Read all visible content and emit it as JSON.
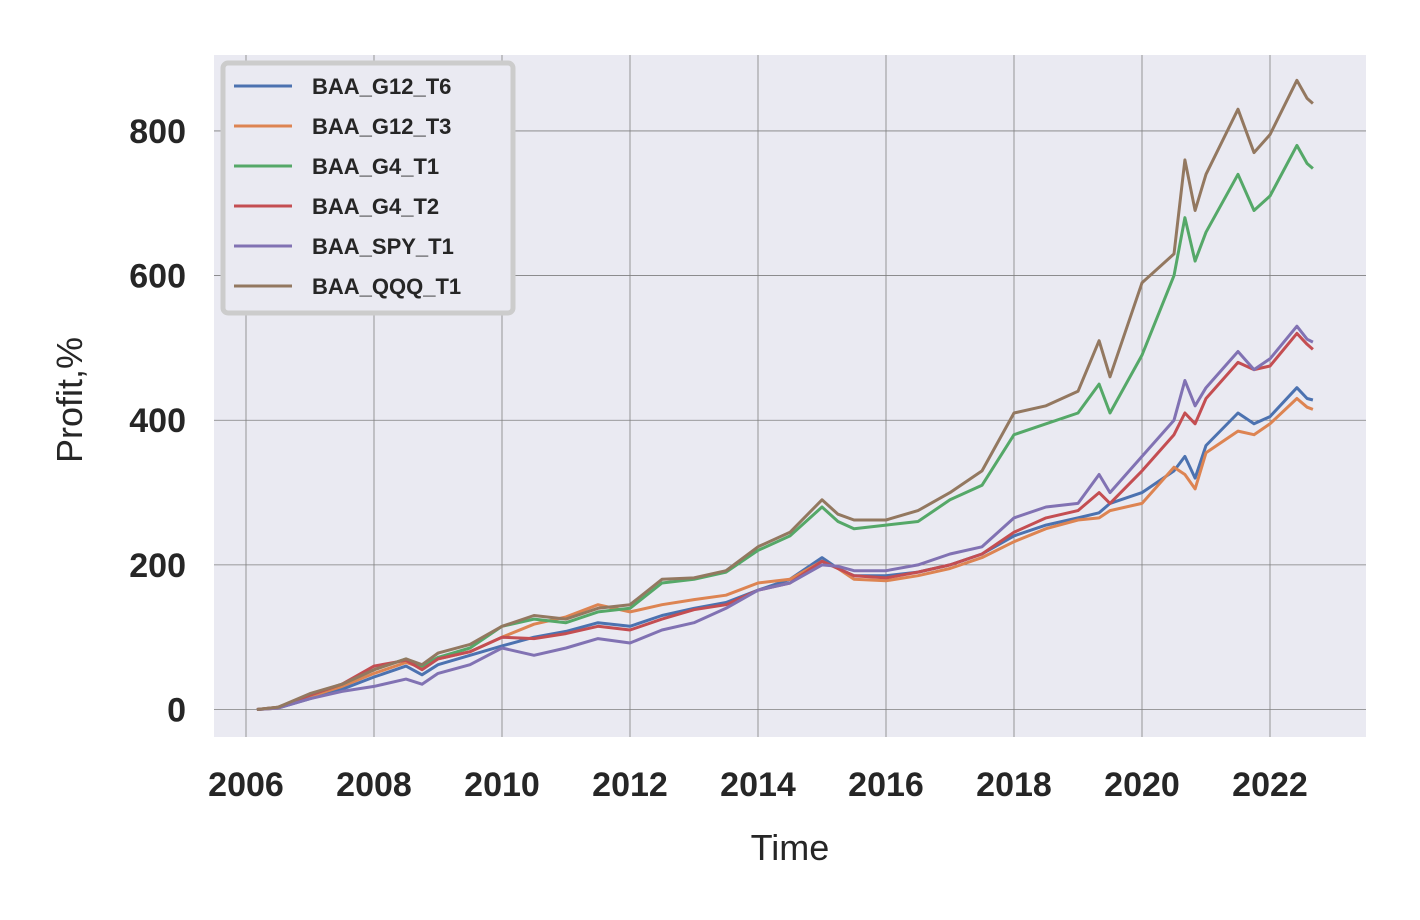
{
  "chart_data": {
    "type": "line",
    "title": "",
    "xlabel": "Time",
    "ylabel": "Profit,%",
    "xlim": [
      2005.5,
      2023.5
    ],
    "ylim": [
      -38,
      905
    ],
    "x_ticks": [
      2006,
      2008,
      2010,
      2012,
      2014,
      2016,
      2018,
      2020,
      2022
    ],
    "y_ticks": [
      0,
      200,
      400,
      600,
      800
    ],
    "grid": true,
    "legend_position": "top-left",
    "series": [
      {
        "name": "BAA_G12_T6",
        "color": "#4c72b0",
        "x": [
          2006.17,
          2006.5,
          2007.0,
          2007.5,
          2008.0,
          2008.5,
          2008.75,
          2009.0,
          2009.5,
          2010.0,
          2010.5,
          2011.0,
          2011.5,
          2012.0,
          2012.5,
          2013.0,
          2013.5,
          2014.0,
          2014.5,
          2015.0,
          2015.25,
          2015.5,
          2016.0,
          2016.5,
          2017.0,
          2017.5,
          2018.0,
          2018.5,
          2019.0,
          2019.33,
          2019.5,
          2020.0,
          2020.5,
          2020.67,
          2020.83,
          2021.0,
          2021.5,
          2021.75,
          2022.0,
          2022.42,
          2022.58,
          2022.67
        ],
        "y": [
          0,
          2,
          15,
          28,
          45,
          60,
          48,
          62,
          75,
          88,
          100,
          108,
          120,
          115,
          130,
          140,
          148,
          165,
          180,
          210,
          195,
          185,
          185,
          190,
          200,
          215,
          240,
          255,
          265,
          272,
          285,
          300,
          330,
          350,
          320,
          365,
          410,
          395,
          405,
          445,
          430,
          428
        ]
      },
      {
        "name": "BAA_G12_T3",
        "color": "#dd8452",
        "x": [
          2006.17,
          2006.5,
          2007.0,
          2007.5,
          2008.0,
          2008.5,
          2008.75,
          2009.0,
          2009.5,
          2010.0,
          2010.5,
          2011.0,
          2011.5,
          2012.0,
          2012.5,
          2013.0,
          2013.5,
          2014.0,
          2014.5,
          2015.0,
          2015.25,
          2015.5,
          2016.0,
          2016.5,
          2017.0,
          2017.5,
          2018.0,
          2018.5,
          2019.0,
          2019.33,
          2019.5,
          2020.0,
          2020.5,
          2020.67,
          2020.83,
          2021.0,
          2021.5,
          2021.75,
          2022.0,
          2022.42,
          2022.58,
          2022.67
        ],
        "y": [
          0,
          2,
          18,
          32,
          50,
          65,
          58,
          70,
          80,
          100,
          118,
          128,
          145,
          135,
          145,
          152,
          158,
          175,
          180,
          205,
          195,
          180,
          178,
          185,
          195,
          210,
          232,
          250,
          262,
          265,
          275,
          285,
          335,
          325,
          305,
          355,
          385,
          380,
          395,
          430,
          418,
          415
        ]
      },
      {
        "name": "BAA_G4_T1",
        "color": "#55a868",
        "x": [
          2006.17,
          2006.5,
          2007.0,
          2007.5,
          2008.0,
          2008.5,
          2008.75,
          2009.0,
          2009.5,
          2010.0,
          2010.5,
          2011.0,
          2011.5,
          2012.0,
          2012.5,
          2013.0,
          2013.5,
          2014.0,
          2014.5,
          2015.0,
          2015.25,
          2015.5,
          2016.0,
          2016.5,
          2017.0,
          2017.5,
          2018.0,
          2018.5,
          2019.0,
          2019.33,
          2019.5,
          2020.0,
          2020.5,
          2020.67,
          2020.83,
          2021.0,
          2021.5,
          2021.75,
          2022.0,
          2022.42,
          2022.58,
          2022.67
        ],
        "y": [
          0,
          3,
          20,
          35,
          55,
          70,
          60,
          72,
          85,
          115,
          125,
          120,
          135,
          140,
          175,
          180,
          190,
          220,
          240,
          280,
          260,
          250,
          255,
          260,
          290,
          310,
          380,
          395,
          410,
          450,
          410,
          490,
          600,
          680,
          620,
          660,
          740,
          690,
          710,
          780,
          755,
          748
        ]
      },
      {
        "name": "BAA_G4_T2",
        "color": "#c44e52",
        "x": [
          2006.17,
          2006.5,
          2007.0,
          2007.5,
          2008.0,
          2008.5,
          2008.75,
          2009.0,
          2009.5,
          2010.0,
          2010.5,
          2011.0,
          2011.5,
          2012.0,
          2012.5,
          2013.0,
          2013.5,
          2014.0,
          2014.5,
          2015.0,
          2015.25,
          2015.5,
          2016.0,
          2016.5,
          2017.0,
          2017.5,
          2018.0,
          2018.5,
          2019.0,
          2019.33,
          2019.5,
          2020.0,
          2020.5,
          2020.67,
          2020.83,
          2021.0,
          2021.5,
          2021.75,
          2022.0,
          2022.42,
          2022.58,
          2022.67
        ],
        "y": [
          0,
          3,
          20,
          35,
          60,
          68,
          55,
          70,
          80,
          100,
          98,
          105,
          115,
          110,
          125,
          138,
          145,
          165,
          175,
          205,
          195,
          185,
          182,
          190,
          200,
          215,
          245,
          265,
          275,
          300,
          285,
          330,
          380,
          410,
          395,
          430,
          480,
          470,
          475,
          520,
          505,
          498
        ]
      },
      {
        "name": "BAA_SPY_T1",
        "color": "#8172b3",
        "x": [
          2006.17,
          2006.5,
          2007.0,
          2007.5,
          2008.0,
          2008.5,
          2008.75,
          2009.0,
          2009.5,
          2010.0,
          2010.5,
          2011.0,
          2011.5,
          2012.0,
          2012.5,
          2013.0,
          2013.5,
          2014.0,
          2014.5,
          2015.0,
          2015.25,
          2015.5,
          2016.0,
          2016.5,
          2017.0,
          2017.5,
          2018.0,
          2018.5,
          2019.0,
          2019.33,
          2019.5,
          2020.0,
          2020.5,
          2020.67,
          2020.83,
          2021.0,
          2021.5,
          2021.75,
          2022.0,
          2022.42,
          2022.58,
          2022.67
        ],
        "y": [
          0,
          2,
          15,
          25,
          32,
          42,
          35,
          50,
          62,
          85,
          75,
          85,
          98,
          92,
          110,
          120,
          140,
          165,
          175,
          200,
          198,
          192,
          192,
          200,
          215,
          225,
          265,
          280,
          285,
          325,
          300,
          350,
          400,
          455,
          420,
          445,
          495,
          470,
          485,
          530,
          512,
          508
        ]
      },
      {
        "name": "BAA_QQQ_T1",
        "color": "#937860",
        "x": [
          2006.17,
          2006.5,
          2007.0,
          2007.5,
          2008.0,
          2008.5,
          2008.75,
          2009.0,
          2009.5,
          2010.0,
          2010.5,
          2011.0,
          2011.5,
          2012.0,
          2012.5,
          2013.0,
          2013.5,
          2014.0,
          2014.5,
          2015.0,
          2015.25,
          2015.5,
          2016.0,
          2016.5,
          2017.0,
          2017.5,
          2018.0,
          2018.5,
          2019.0,
          2019.33,
          2019.5,
          2020.0,
          2020.5,
          2020.67,
          2020.83,
          2021.0,
          2021.5,
          2021.75,
          2022.0,
          2022.42,
          2022.58,
          2022.67
        ],
        "y": [
          0,
          3,
          22,
          35,
          55,
          70,
          62,
          78,
          90,
          115,
          130,
          125,
          140,
          145,
          180,
          182,
          192,
          225,
          245,
          290,
          270,
          262,
          262,
          275,
          300,
          330,
          410,
          420,
          440,
          510,
          460,
          590,
          630,
          760,
          690,
          740,
          830,
          770,
          795,
          870,
          845,
          838
        ]
      }
    ]
  }
}
